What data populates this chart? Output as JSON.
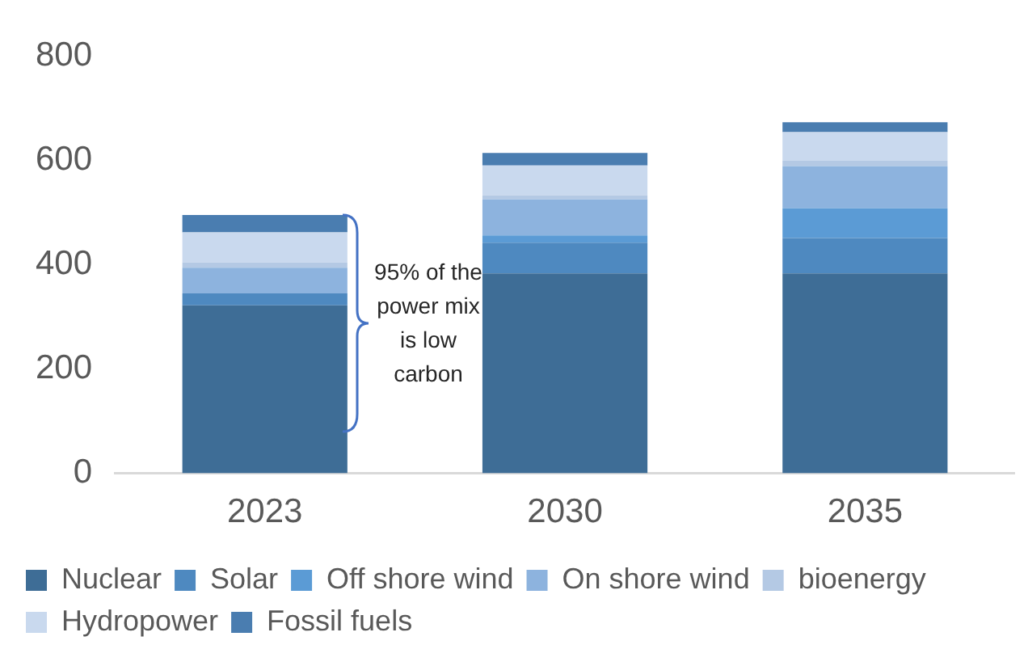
{
  "chart_data": {
    "type": "bar",
    "stacked": true,
    "categories": [
      "2023",
      "2030",
      "2035"
    ],
    "series": [
      {
        "name": "Nuclear",
        "color": "#3e6d96",
        "values": [
          322,
          383,
          383
        ]
      },
      {
        "name": "Solar",
        "color": "#4e89c0",
        "values": [
          23,
          59,
          68
        ]
      },
      {
        "name": "Off shore wind",
        "color": "#5b9bd5",
        "values": [
          0,
          14,
          57
        ]
      },
      {
        "name": "On shore wind",
        "color": "#8db3de",
        "values": [
          49,
          69,
          81
        ]
      },
      {
        "name": "bioenergy",
        "color": "#b4c9e4",
        "values": [
          10,
          8,
          10
        ]
      },
      {
        "name": "Hydropower",
        "color": "#c9d9ee",
        "values": [
          58,
          57,
          55
        ]
      },
      {
        "name": "Fossil fuels",
        "color": "#4a7db0",
        "values": [
          33,
          24,
          19
        ]
      }
    ],
    "ylim": [
      0,
      800
    ],
    "yticks": [
      0,
      200,
      400,
      600,
      800
    ],
    "grid": false,
    "legend": "bottom",
    "annotations": [
      "95% of the power mix is low carbon"
    ]
  }
}
